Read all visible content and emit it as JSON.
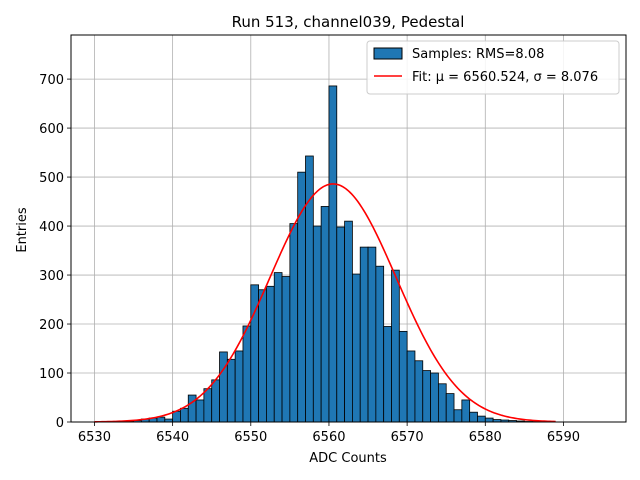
{
  "chart_data": {
    "type": "bar",
    "title": "Run 513, channel039, Pedestal",
    "xlabel": "ADC Counts",
    "ylabel": "Entries",
    "xlim": [
      6527,
      6598
    ],
    "ylim": [
      0,
      790
    ],
    "xticks": [
      6530,
      6540,
      6550,
      6560,
      6570,
      6580,
      6590
    ],
    "yticks": [
      0,
      100,
      200,
      300,
      400,
      500,
      600,
      700
    ],
    "grid": true,
    "legend_position": "top-right",
    "bin_width": 1,
    "series": [
      {
        "name": "Samples: RMS=8.08",
        "kind": "histogram",
        "color": "#1f77b4",
        "edge_color": "#000000",
        "bins": [
          6533,
          6534,
          6535,
          6536,
          6537,
          6538,
          6539,
          6540,
          6541,
          6542,
          6543,
          6544,
          6545,
          6546,
          6547,
          6548,
          6549,
          6550,
          6551,
          6552,
          6553,
          6554,
          6555,
          6556,
          6557,
          6558,
          6559,
          6560,
          6561,
          6562,
          6563,
          6564,
          6565,
          6566,
          6567,
          6568,
          6569,
          6570,
          6571,
          6572,
          6573,
          6574,
          6575,
          6576,
          6577,
          6578,
          6579,
          6580,
          6581,
          6582,
          6583,
          6584,
          6585,
          6586
        ],
        "values": [
          1,
          2,
          3,
          6,
          8,
          10,
          6,
          22,
          28,
          55,
          45,
          68,
          86,
          143,
          128,
          145,
          196,
          280,
          270,
          277,
          305,
          297,
          405,
          510,
          543,
          400,
          440,
          686,
          398,
          410,
          302,
          357,
          357,
          318,
          195,
          310,
          185,
          145,
          125,
          105,
          100,
          78,
          58,
          25,
          45,
          20,
          12,
          8,
          5,
          4,
          3,
          2,
          1,
          1
        ]
      },
      {
        "name": "Fit: μ = 6560.524, σ = 8.076",
        "kind": "gaussian-fit",
        "color": "#ff0000",
        "mu": 6560.524,
        "sigma": 8.076,
        "amplitude": 486,
        "x_range": [
          6530,
          6589
        ]
      }
    ]
  }
}
